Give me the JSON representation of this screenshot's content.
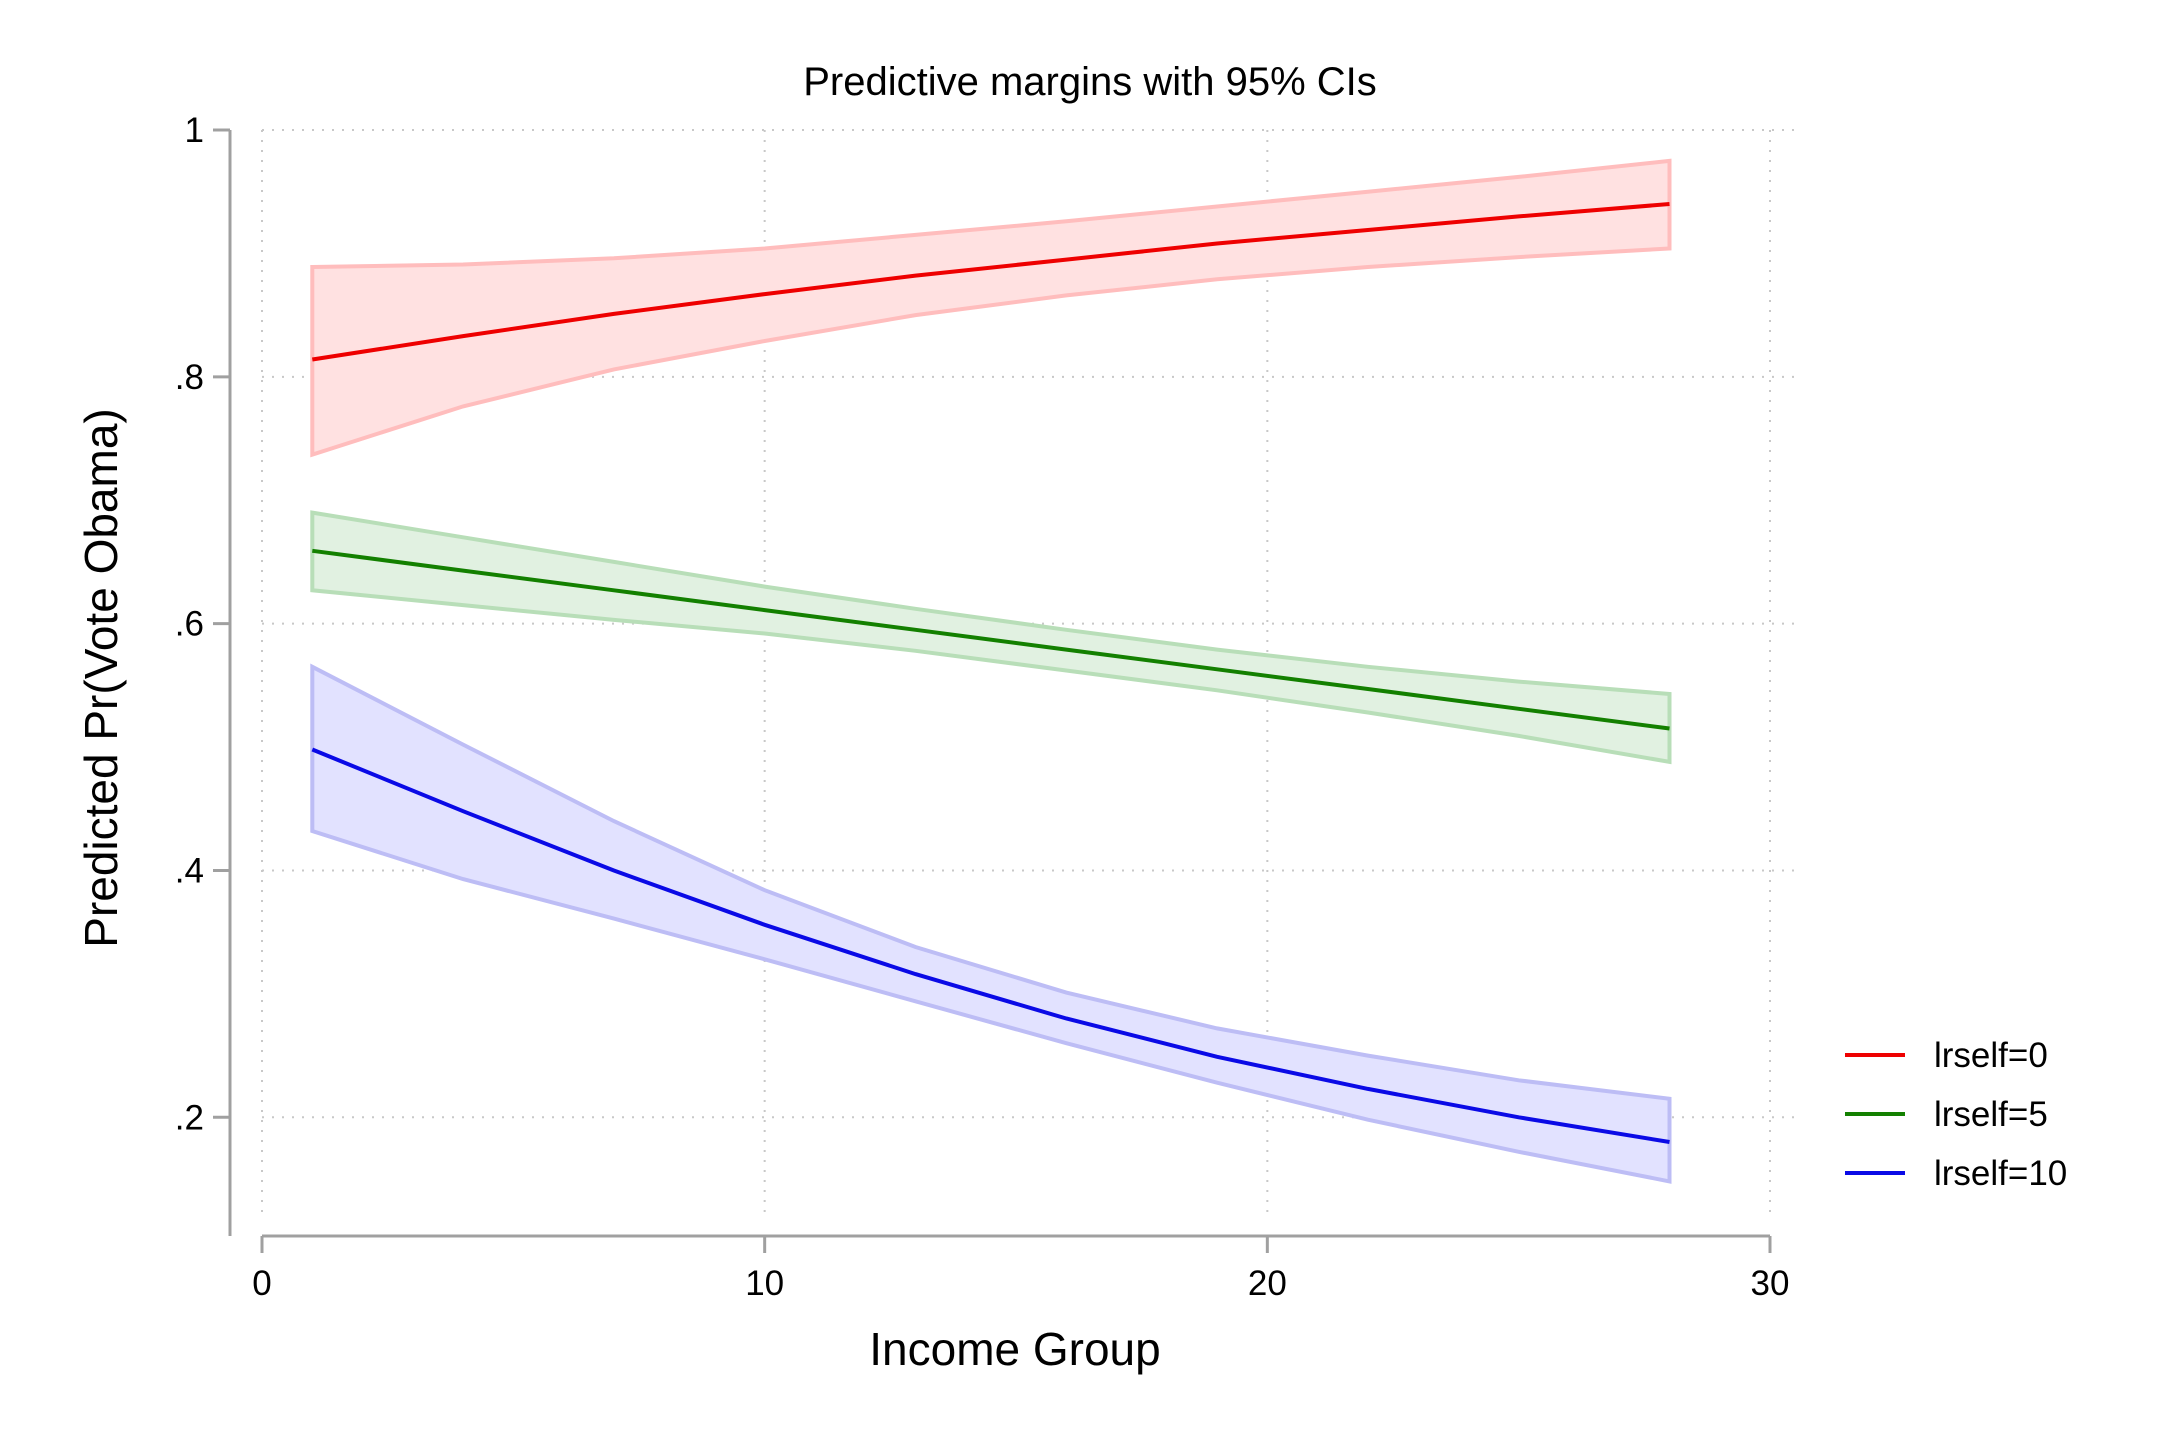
{
  "chart_data": {
    "type": "line",
    "title": "Predictive margins with 95% CIs",
    "xlabel": "Income Group",
    "ylabel": "Predicted Pr(Vote Obama)",
    "xlim": [
      0,
      30
    ],
    "ylim": [
      0.12,
      1.0
    ],
    "xticks": [
      0,
      10,
      20,
      30
    ],
    "xtick_labels": [
      "0",
      "10",
      "20",
      "30"
    ],
    "yticks": [
      0.2,
      0.4,
      0.6,
      0.8,
      1.0
    ],
    "ytick_labels": [
      ".2",
      ".4",
      ".6",
      ".8",
      "1"
    ],
    "grid": true,
    "legend": "right",
    "x": [
      1,
      4,
      7,
      10,
      13,
      16,
      19,
      22,
      25,
      28
    ],
    "series": [
      {
        "name": "lrself=0",
        "color": "#ee0000",
        "band_fill": "#ffe1e1",
        "band_stroke": "#ffbdbd",
        "values": [
          0.814,
          0.833,
          0.851,
          0.867,
          0.882,
          0.895,
          0.908,
          0.919,
          0.93,
          0.94
        ],
        "lower": [
          0.737,
          0.776,
          0.806,
          0.829,
          0.85,
          0.866,
          0.879,
          0.889,
          0.897,
          0.904
        ],
        "upper": [
          0.889,
          0.891,
          0.896,
          0.904,
          0.915,
          0.926,
          0.938,
          0.95,
          0.962,
          0.975
        ]
      },
      {
        "name": "lrself=5",
        "color": "#138000",
        "band_fill": "#e1f1e1",
        "band_stroke": "#b8deb8",
        "values": [
          0.659,
          0.643,
          0.627,
          0.611,
          0.595,
          0.579,
          0.563,
          0.547,
          0.531,
          0.515
        ],
        "lower": [
          0.627,
          0.615,
          0.603,
          0.592,
          0.578,
          0.562,
          0.546,
          0.528,
          0.509,
          0.488
        ],
        "upper": [
          0.69,
          0.67,
          0.65,
          0.63,
          0.612,
          0.595,
          0.579,
          0.565,
          0.553,
          0.543
        ]
      },
      {
        "name": "lrself=10",
        "color": "#0a0ae6",
        "band_fill": "#e2e2ff",
        "band_stroke": "#bdbdf5",
        "values": [
          0.498,
          0.448,
          0.4,
          0.356,
          0.316,
          0.28,
          0.249,
          0.223,
          0.2,
          0.18
        ],
        "lower": [
          0.432,
          0.393,
          0.361,
          0.328,
          0.294,
          0.26,
          0.228,
          0.198,
          0.172,
          0.148
        ],
        "upper": [
          0.565,
          0.502,
          0.44,
          0.384,
          0.338,
          0.301,
          0.272,
          0.25,
          0.23,
          0.215
        ]
      }
    ]
  }
}
